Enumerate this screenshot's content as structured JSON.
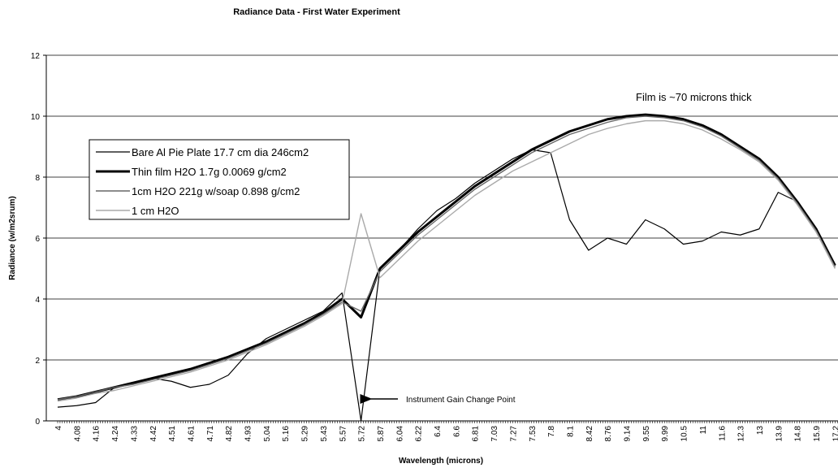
{
  "chart_data": {
    "type": "line",
    "title": "Radiance Data - First Water Experiment",
    "x_label": "Wavelength (microns)",
    "y_label": "Radiance (w/m2srum)",
    "annotations": [
      "Film is ~70 microns thick",
      "Instrument Gain Change Point"
    ],
    "categories": [
      "4",
      "4.08",
      "4.16",
      "4.24",
      "4.33",
      "4.42",
      "4.51",
      "4.61",
      "4.71",
      "4.82",
      "4.93",
      "5.04",
      "5.16",
      "5.29",
      "5.43",
      "5.57",
      "5.72",
      "5.87",
      "6.04",
      "6.22",
      "6.4",
      "6.6",
      "6.81",
      "7.03",
      "7.27",
      "7.53",
      "7.8",
      "8.1",
      "8.42",
      "8.76",
      "9.14",
      "9.55",
      "9.99",
      "10.5",
      "11",
      "11.6",
      "12.3",
      "13",
      "13.9",
      "14.8",
      "15.9",
      "17.2"
    ],
    "series": [
      {
        "name": "Bare Al Pie Plate 17.7 cm dia 246cm2",
        "color": "#000000",
        "values": [
          0.45,
          0.5,
          0.6,
          1.1,
          1.25,
          1.4,
          1.3,
          1.1,
          1.2,
          1.5,
          2.2,
          2.7,
          3.0,
          3.3,
          3.6,
          4.2,
          0,
          5.0,
          5.6,
          6.3,
          6.9,
          7.3,
          7.8,
          8.2,
          8.6,
          8.9,
          8.8,
          6.6,
          5.6,
          6.0,
          5.8,
          6.6,
          6.3,
          5.8,
          5.9,
          6.2,
          6.1,
          6.3,
          7.5,
          7.2,
          6.3,
          5.1
        ]
      },
      {
        "name": "Thin film H2O 1.7g 0.0069 g/cm2",
        "color": "#000000",
        "values": [
          0.7,
          0.8,
          0.95,
          1.1,
          1.25,
          1.4,
          1.55,
          1.7,
          1.9,
          2.1,
          2.35,
          2.6,
          2.9,
          3.2,
          3.55,
          4.0,
          3.4,
          5.0,
          5.6,
          6.2,
          6.7,
          7.2,
          7.7,
          8.1,
          8.5,
          8.9,
          9.2,
          9.5,
          9.7,
          9.9,
          10.0,
          10.05,
          10.0,
          9.9,
          9.7,
          9.4,
          9.0,
          8.6,
          8.0,
          7.2,
          6.3,
          5.1
        ]
      },
      {
        "name": "1cm H2O 221g w/soap 0.898 g/cm2",
        "color": "#666666",
        "values": [
          0.7,
          0.8,
          0.95,
          1.1,
          1.2,
          1.35,
          1.5,
          1.65,
          1.85,
          2.05,
          2.3,
          2.55,
          2.85,
          3.15,
          3.5,
          3.9,
          3.6,
          4.9,
          5.5,
          6.1,
          6.6,
          7.1,
          7.6,
          8.0,
          8.4,
          8.8,
          9.1,
          9.4,
          9.6,
          9.8,
          9.95,
          10.0,
          9.95,
          9.85,
          9.65,
          9.35,
          8.95,
          8.55,
          7.95,
          7.15,
          6.25,
          5.05
        ]
      },
      {
        "name": "1 cm H2O",
        "color": "#aaaaaa",
        "values": [
          0.65,
          0.75,
          0.9,
          1.0,
          1.15,
          1.3,
          1.45,
          1.6,
          1.8,
          2.0,
          2.25,
          2.5,
          2.8,
          3.1,
          3.45,
          3.85,
          6.8,
          4.7,
          5.3,
          5.9,
          6.4,
          6.9,
          7.4,
          7.8,
          8.2,
          8.5,
          8.8,
          9.1,
          9.4,
          9.6,
          9.75,
          9.85,
          9.85,
          9.75,
          9.55,
          9.25,
          8.9,
          8.5,
          7.9,
          7.1,
          6.2,
          5.0
        ]
      }
    ],
    "ylim": [
      0,
      12
    ],
    "yticks": [
      0,
      2,
      4,
      6,
      8,
      10,
      12
    ],
    "grid": true
  }
}
